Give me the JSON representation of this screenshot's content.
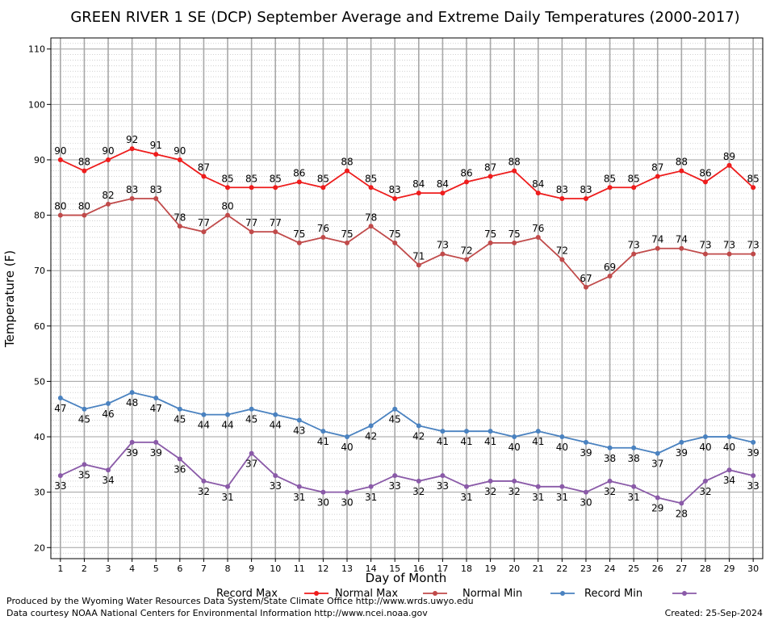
{
  "chart_data": {
    "type": "line",
    "title": "GREEN RIVER 1 SE (DCP) September Average and Extreme Daily Temperatures (2000-2017)",
    "xlabel": "Day of Month",
    "ylabel": "Temperature (F)",
    "ylim": [
      18,
      112
    ],
    "xlim": [
      0.6,
      30.4
    ],
    "yticks": [
      20,
      30,
      40,
      50,
      60,
      70,
      80,
      90,
      100,
      110
    ],
    "x": [
      1,
      2,
      3,
      4,
      5,
      6,
      7,
      8,
      9,
      10,
      11,
      12,
      13,
      14,
      15,
      16,
      17,
      18,
      19,
      20,
      21,
      22,
      23,
      24,
      25,
      26,
      27,
      28,
      29,
      30
    ],
    "grid": true,
    "legend_position": "bottom",
    "series": [
      {
        "name": "Record Max",
        "color": "#ee1c1c",
        "label_pos": "above",
        "values": [
          90,
          88,
          90,
          92,
          91,
          90,
          87,
          85,
          85,
          85,
          86,
          85,
          88,
          85,
          83,
          84,
          84,
          86,
          87,
          88,
          84,
          83,
          83,
          85,
          85,
          87,
          88,
          86,
          89,
          85
        ]
      },
      {
        "name": "Normal Max",
        "color": "#c04a4a",
        "label_pos": "above",
        "values": [
          80,
          80,
          82,
          83,
          83,
          78,
          77,
          80,
          77,
          77,
          75,
          76,
          75,
          78,
          75,
          71,
          73,
          72,
          75,
          75,
          76,
          72,
          67,
          69,
          73,
          74,
          74,
          73,
          73,
          73
        ]
      },
      {
        "name": "Normal Min",
        "color": "#4a82c0",
        "label_pos": "below",
        "values": [
          47,
          45,
          46,
          48,
          47,
          45,
          44,
          44,
          45,
          44,
          43,
          41,
          40,
          42,
          45,
          42,
          41,
          41,
          41,
          40,
          41,
          40,
          39,
          38,
          38,
          37,
          39,
          40,
          40,
          39
        ]
      },
      {
        "name": "Record Min",
        "color": "#8a5aa8",
        "label_pos": "below",
        "values": [
          33,
          35,
          34,
          39,
          39,
          36,
          32,
          31,
          37,
          33,
          31,
          30,
          30,
          31,
          33,
          32,
          33,
          31,
          32,
          32,
          31,
          31,
          30,
          32,
          31,
          29,
          28,
          32,
          34,
          33
        ]
      }
    ]
  },
  "credits": {
    "producer": "Produced by the Wyoming Water Resources Data System/State Climate Office http://www.wrds.uwyo.edu",
    "source": "Data courtesy NOAA National Centers for Environmental Information http://www.ncei.noaa.gov",
    "created": "Created: 25-Sep-2024"
  }
}
